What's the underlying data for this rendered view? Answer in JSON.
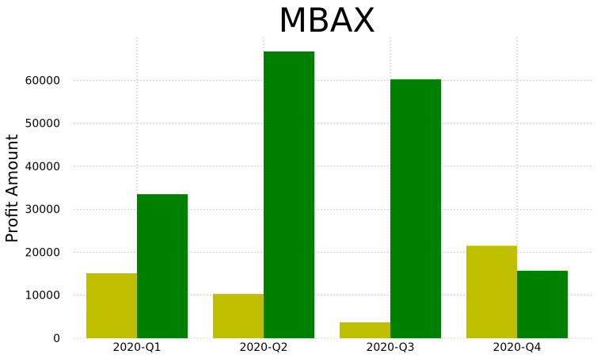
{
  "chart_data": {
    "type": "bar",
    "title": "MBAX",
    "xlabel": "",
    "ylabel": "Profit Amount",
    "categories": [
      "2020-Q1",
      "2020-Q2",
      "2020-Q3",
      "2020-Q4"
    ],
    "series": [
      {
        "values": [
          15100,
          10300,
          3700,
          21500
        ],
        "color": "#bfbf00"
      },
      {
        "values": [
          33500,
          66700,
          60200,
          15700
        ],
        "color": "#008000"
      }
    ],
    "yticks": [
      0,
      10000,
      20000,
      30000,
      40000,
      50000,
      60000
    ],
    "ylim": [
      0,
      70000
    ],
    "grid": true,
    "legend": "none"
  }
}
